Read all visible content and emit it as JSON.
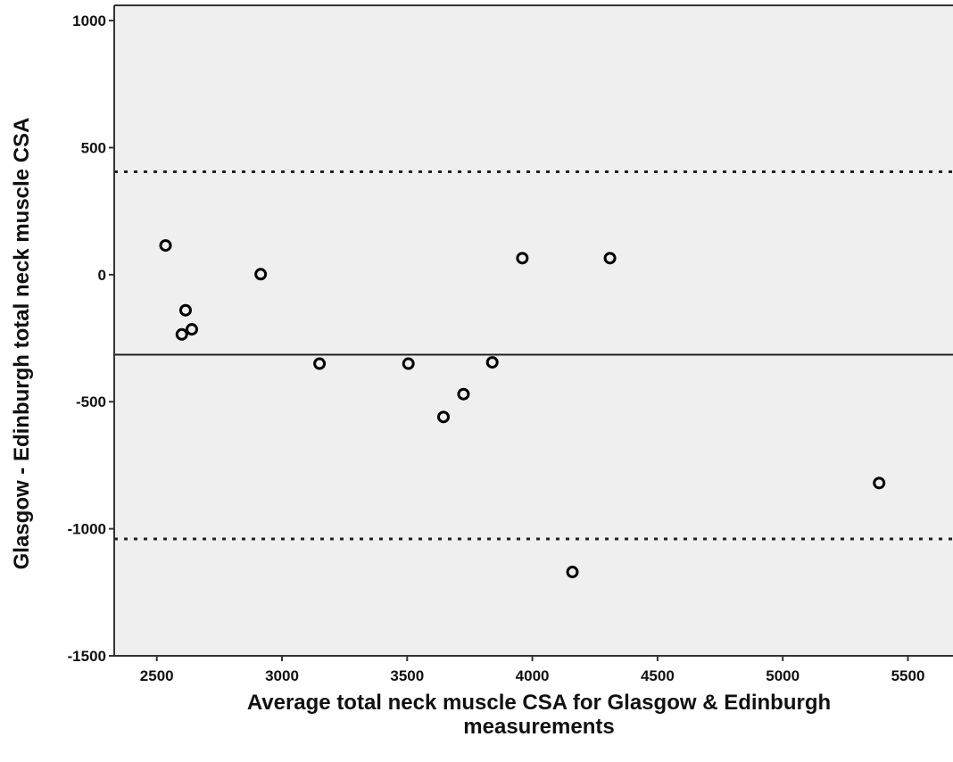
{
  "chart_data": {
    "type": "scatter",
    "title": "",
    "xlabel_lines": [
      "Average total neck muscle CSA for Glasgow & Edinburgh",
      "measurements"
    ],
    "ylabel": "Glasgow - Edinburgh total neck muscle CSA",
    "xlim": [
      2330,
      5680
    ],
    "ylim": [
      -1500,
      1060
    ],
    "x_ticks": [
      2500,
      3000,
      3500,
      4000,
      4500,
      5000,
      5500
    ],
    "y_ticks": [
      -1500,
      -1000,
      -500,
      0,
      500,
      1000
    ],
    "grid": false,
    "background": "#efefef",
    "point_color": "#000000",
    "points": [
      {
        "x": 2535,
        "y": 115
      },
      {
        "x": 2600,
        "y": -235
      },
      {
        "x": 2615,
        "y": -140
      },
      {
        "x": 2640,
        "y": -215
      },
      {
        "x": 2915,
        "y": 2
      },
      {
        "x": 3150,
        "y": -350
      },
      {
        "x": 3505,
        "y": -350
      },
      {
        "x": 3645,
        "y": -560
      },
      {
        "x": 3725,
        "y": -470
      },
      {
        "x": 3840,
        "y": -345
      },
      {
        "x": 3960,
        "y": 65
      },
      {
        "x": 4160,
        "y": -1170
      },
      {
        "x": 4310,
        "y": 65
      },
      {
        "x": 5385,
        "y": -820
      }
    ],
    "reference_lines": [
      {
        "kind": "mean",
        "y": -315,
        "style": "solid"
      },
      {
        "kind": "upper-limit",
        "y": 405,
        "style": "dotted"
      },
      {
        "kind": "lower-limit",
        "y": -1040,
        "style": "dotted"
      }
    ]
  }
}
